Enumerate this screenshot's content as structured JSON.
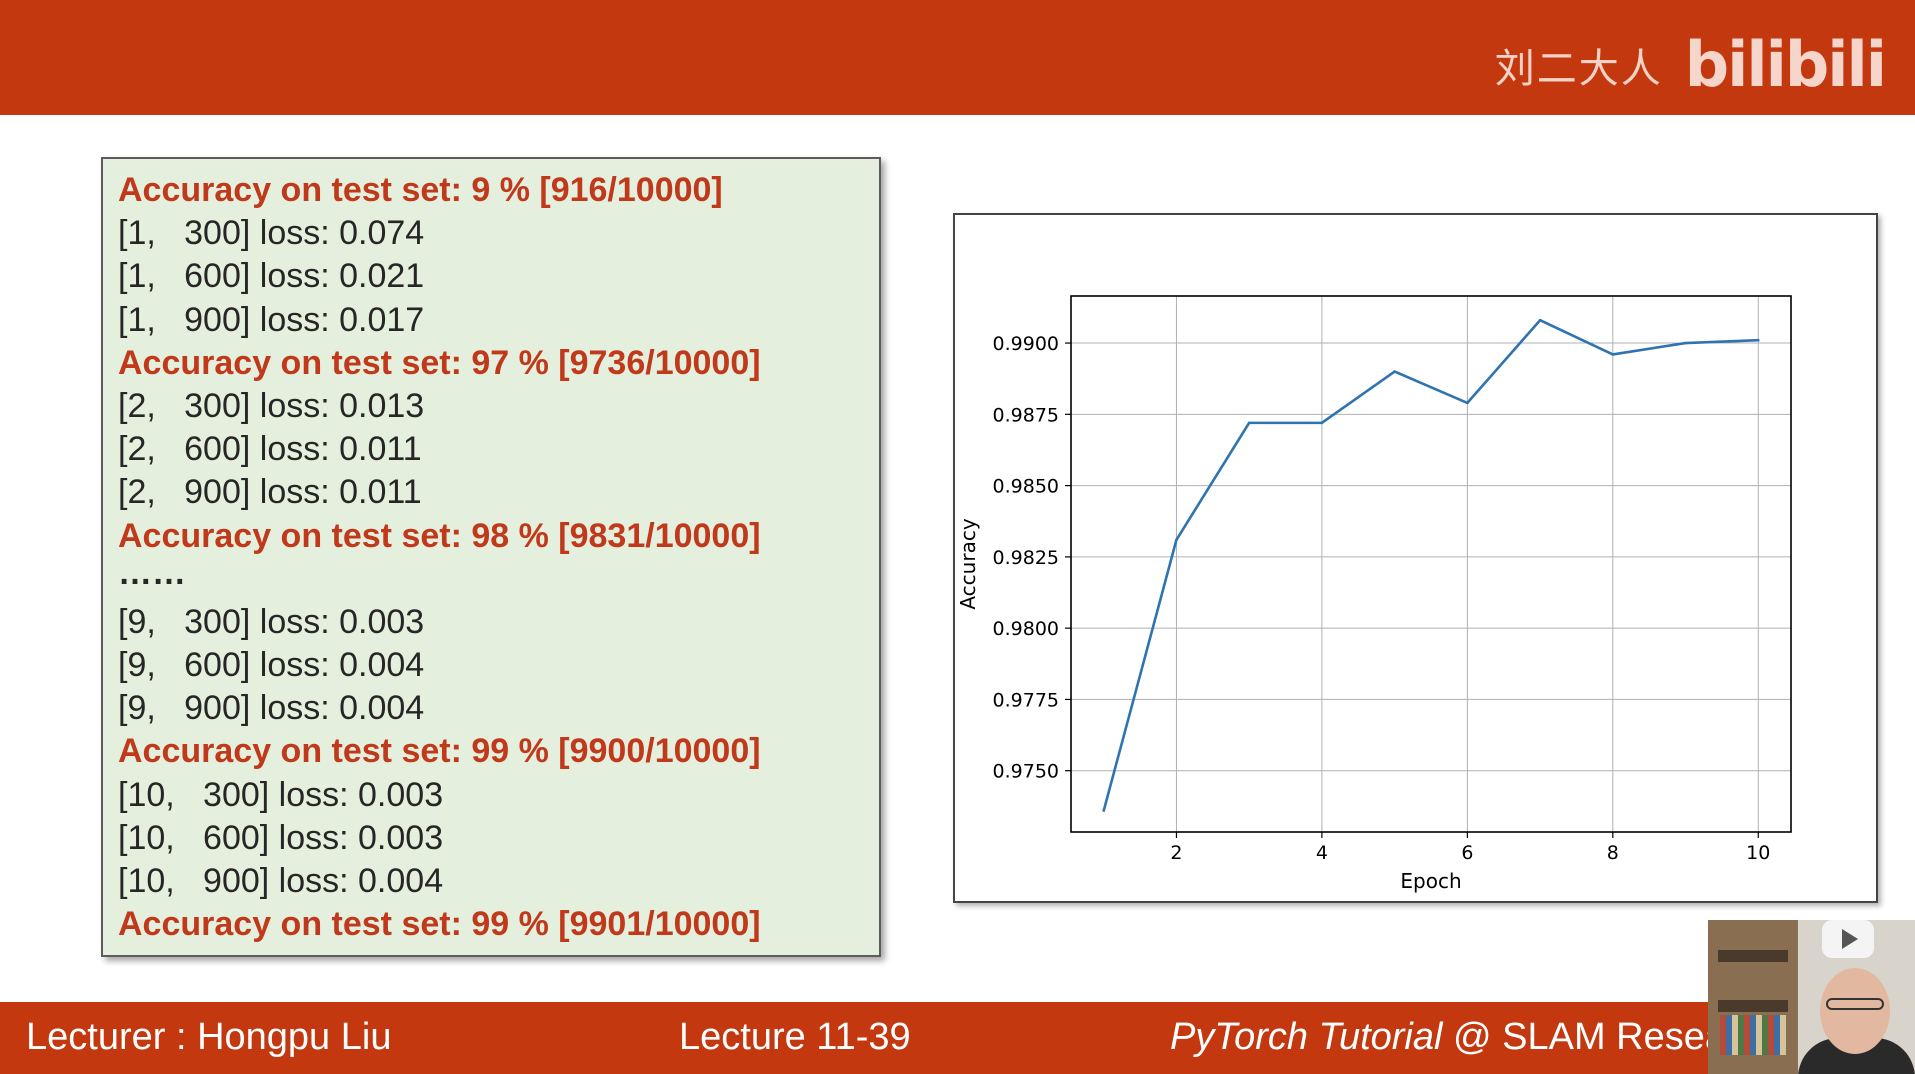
{
  "brand": {
    "name": "刘二大人",
    "logo": "bilibili"
  },
  "log_lines": [
    {
      "text": "Accuracy on test set: 9 % [916/10000]",
      "type": "acc"
    },
    {
      "text": "[1,   300] loss: 0.074",
      "type": "loss"
    },
    {
      "text": "[1,   600] loss: 0.021",
      "type": "loss"
    },
    {
      "text": "[1,   900] loss: 0.017",
      "type": "loss"
    },
    {
      "text": "Accuracy on test set: 97 % [9736/10000]",
      "type": "acc"
    },
    {
      "text": "[2,   300] loss: 0.013",
      "type": "loss"
    },
    {
      "text": "[2,   600] loss: 0.011",
      "type": "loss"
    },
    {
      "text": "[2,   900] loss: 0.011",
      "type": "loss"
    },
    {
      "text": "Accuracy on test set: 98 % [9831/10000]",
      "type": "acc"
    },
    {
      "text": "……",
      "type": "dots"
    },
    {
      "text": "[9,   300] loss: 0.003",
      "type": "loss"
    },
    {
      "text": "[9,   600] loss: 0.004",
      "type": "loss"
    },
    {
      "text": "[9,   900] loss: 0.004",
      "type": "loss"
    },
    {
      "text": "Accuracy on test set: 99 % [9900/10000]",
      "type": "acc"
    },
    {
      "text": "[10,   300] loss: 0.003",
      "type": "loss"
    },
    {
      "text": "[10,   600] loss: 0.003",
      "type": "loss"
    },
    {
      "text": "[10,   900] loss: 0.004",
      "type": "loss"
    },
    {
      "text": "Accuracy on test set: 99 % [9901/10000]",
      "type": "acc"
    }
  ],
  "chart_data": {
    "type": "line",
    "x": [
      1,
      2,
      3,
      4,
      5,
      6,
      7,
      8,
      9,
      10
    ],
    "series": [
      {
        "values": [
          0.9736,
          0.9831,
          0.9872,
          0.9872,
          0.989,
          0.9879,
          0.9908,
          0.9896,
          0.99,
          0.9901
        ],
        "color": "#2f74b0"
      }
    ],
    "xlabel": "Epoch",
    "ylabel": "Accuracy",
    "xlim": [
      0.55,
      10.45
    ],
    "ylim": [
      0.97285,
      0.99165
    ],
    "xticks": [
      2,
      4,
      6,
      8,
      10
    ],
    "yticks": [
      0.975,
      0.9775,
      0.98,
      0.9825,
      0.985,
      0.9875,
      0.99
    ],
    "grid": true
  },
  "footer": {
    "lecturer": "Lecturer : Hongpu Liu",
    "lecture": "Lecture 11-39",
    "course_italic": "PyTorch Tutorial",
    "course_rest": " @ SLAM Resea"
  },
  "colors": {
    "bar": "#c4380f",
    "accuracy_text": "#c0391b",
    "panel": "#e4efdd",
    "line": "#2f74b0"
  }
}
